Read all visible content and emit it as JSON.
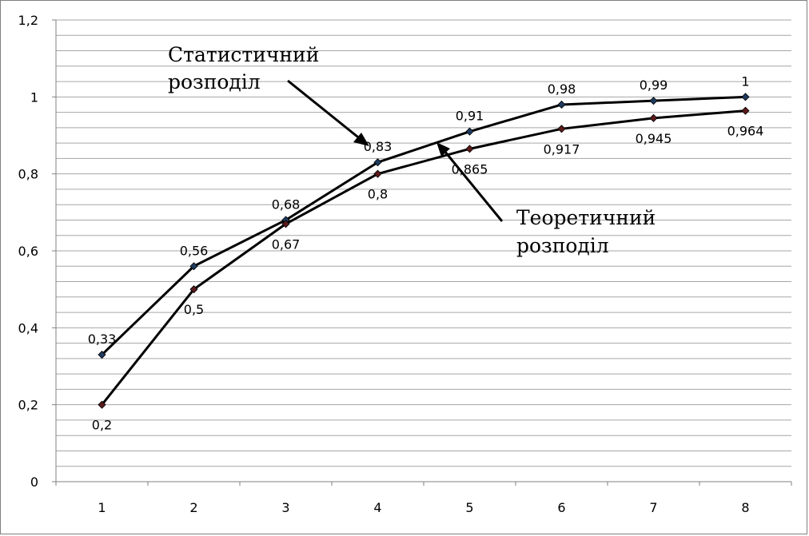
{
  "chart_data": {
    "type": "line",
    "categories": [
      "1",
      "2",
      "3",
      "4",
      "5",
      "6",
      "7",
      "8"
    ],
    "ylim": [
      0,
      1.2
    ],
    "y_ticks": [
      "0",
      "0,2",
      "0,4",
      "0,6",
      "0,8",
      "1",
      "1,2"
    ],
    "y_tick_values": [
      0,
      0.2,
      0.4,
      0.6,
      0.8,
      1.0,
      1.2
    ],
    "grid": "horizontal minor lines",
    "series": [
      {
        "values": [
          0.33,
          0.56,
          0.68,
          0.83,
          0.91,
          0.98,
          0.99,
          1.0
        ],
        "labels": [
          "0,33",
          "0,56",
          "0,68",
          "0,83",
          "0,91",
          "0,98",
          "0,99",
          "1"
        ],
        "label_position": "above",
        "marker_color": "#1f3a5f"
      },
      {
        "values": [
          0.2,
          0.5,
          0.67,
          0.8,
          0.865,
          0.917,
          0.945,
          0.964
        ],
        "labels": [
          "0,2",
          "0,5",
          "0,67",
          "0,8",
          "0,865",
          "0,917",
          "0,945",
          "0,964"
        ],
        "label_position": "below",
        "marker_color": "#5a1a1a"
      }
    ],
    "annotations": [
      {
        "lines": [
          "Статистичний",
          "розподіл"
        ],
        "points_to_series": 0
      },
      {
        "lines": [
          "Теоретичний",
          "розподіл"
        ],
        "points_to_series": 1
      }
    ]
  }
}
